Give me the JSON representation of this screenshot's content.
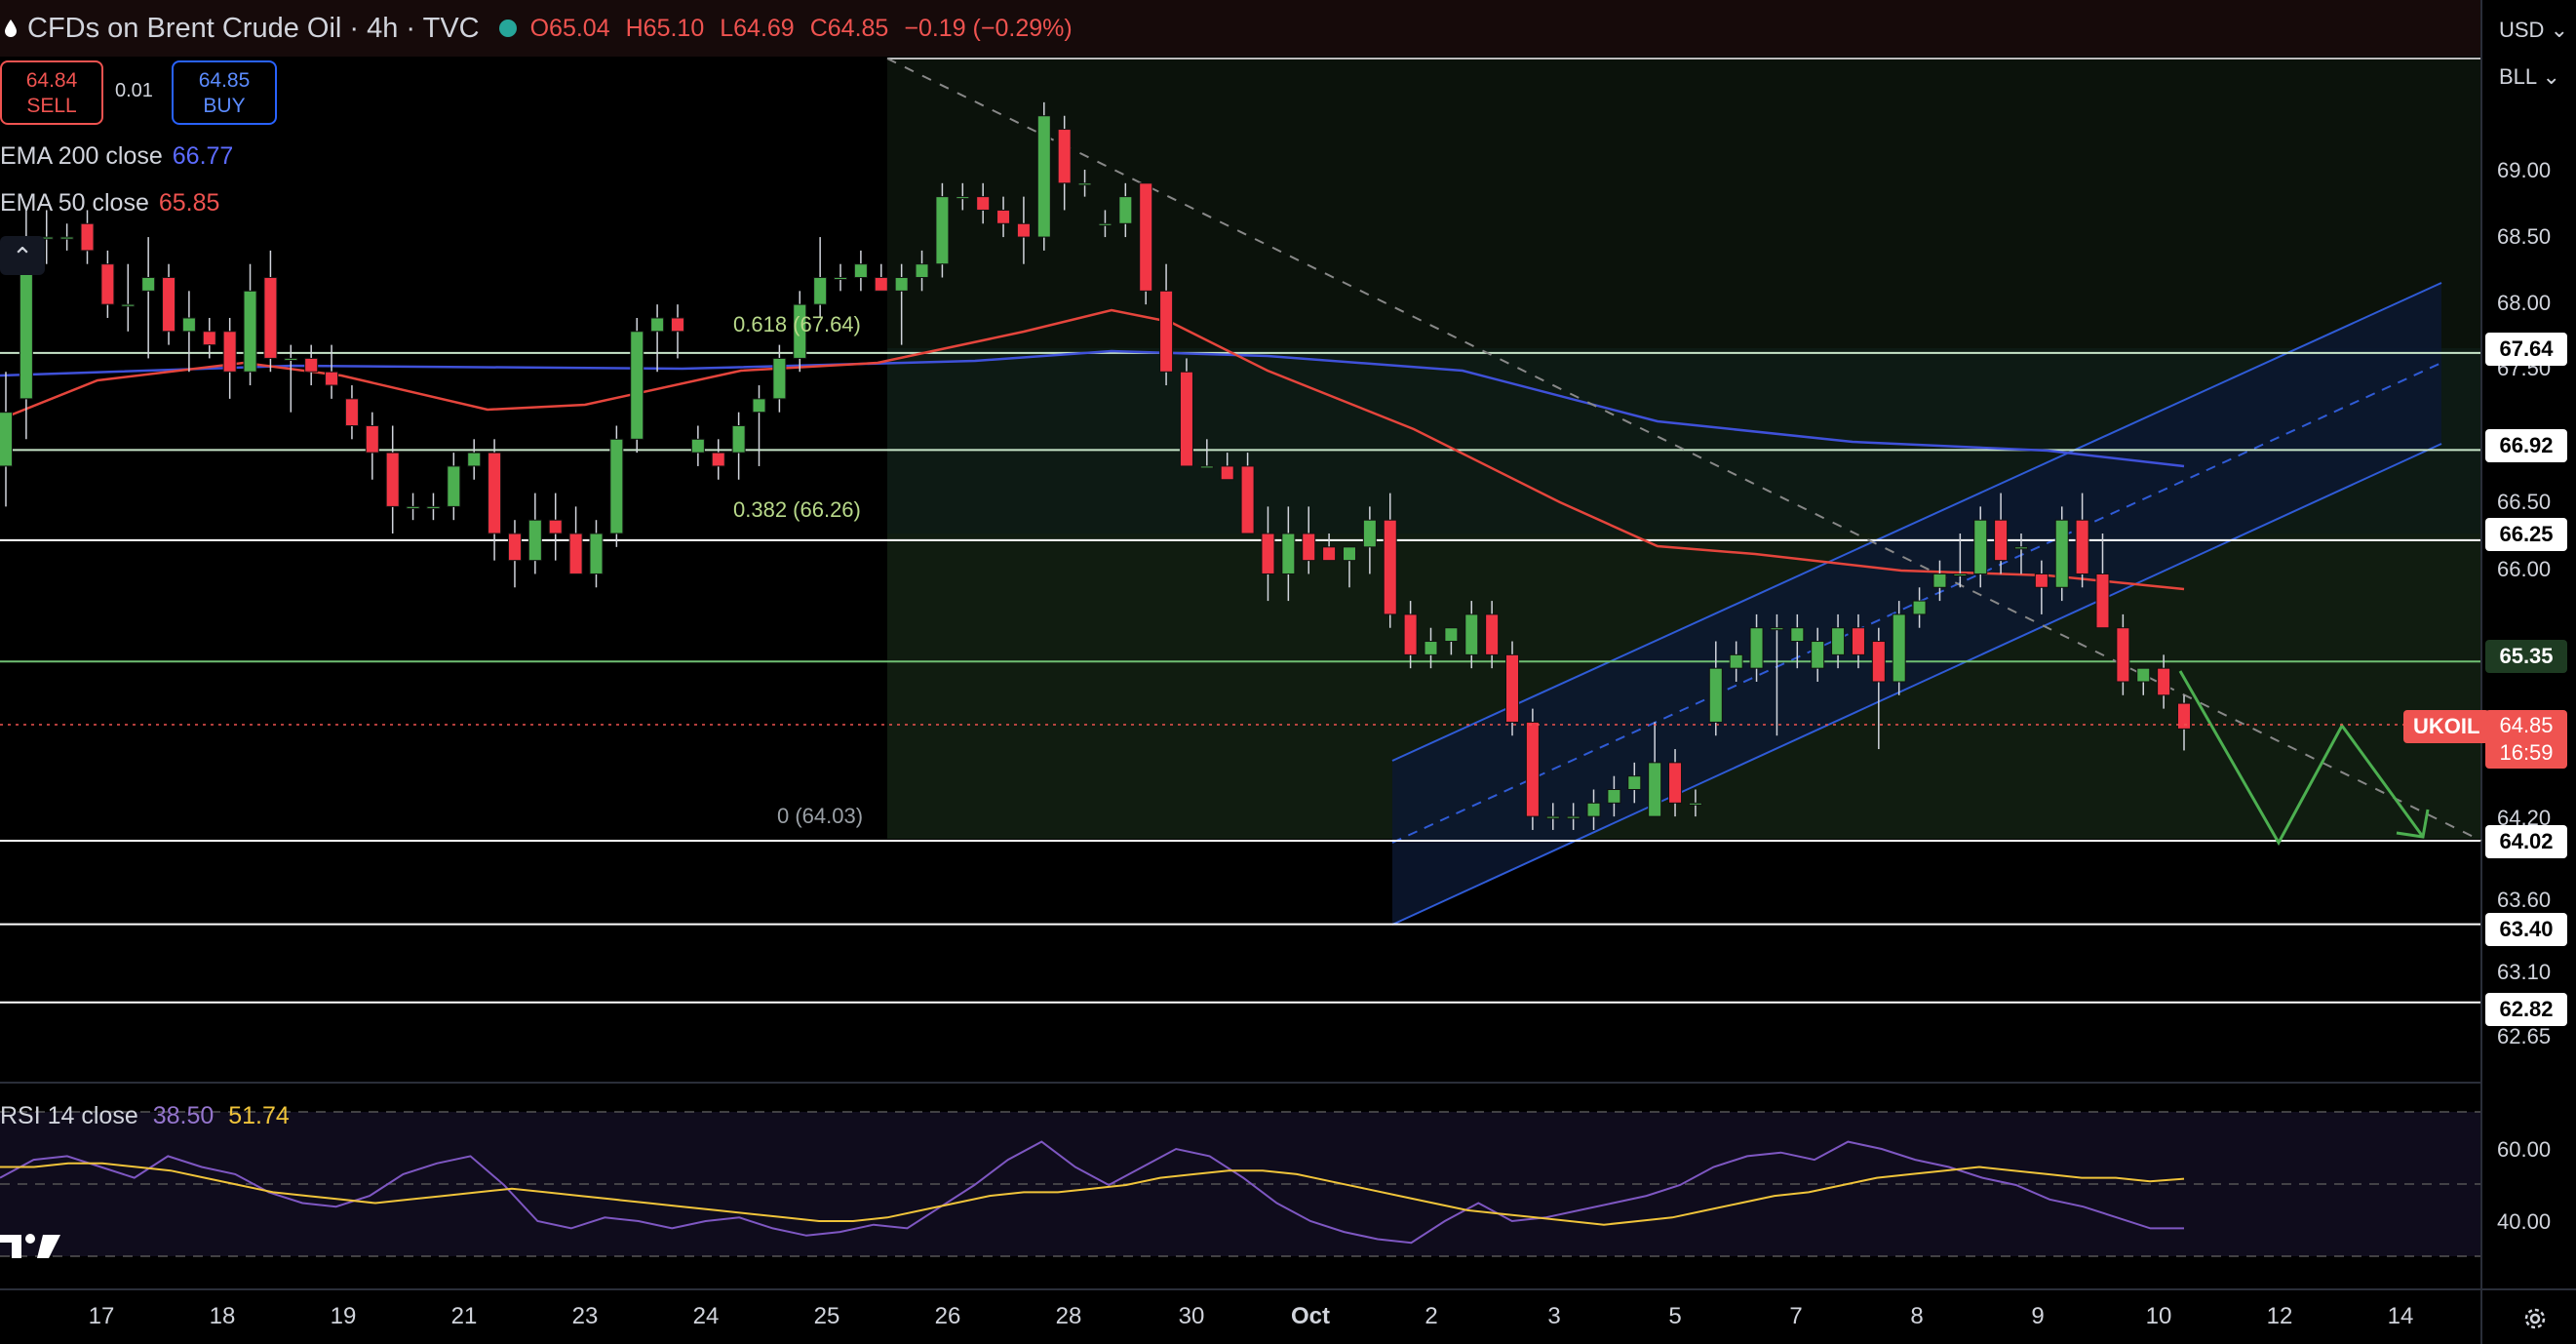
{
  "header": {
    "title": "CFDs on Brent Crude Oil · 4h · TVC",
    "open": "O65.04",
    "high": "H65.10",
    "low": "L64.69",
    "close": "C64.85",
    "change": "−0.19 (−0.29%)"
  },
  "trade": {
    "sell_price": "64.84",
    "sell_label": "SELL",
    "spread": "0.01",
    "buy_price": "64.85",
    "buy_label": "BUY"
  },
  "indicators": {
    "ema200_label": "EMA 200 close",
    "ema200_value": "66.77",
    "ema50_label": "EMA 50 close",
    "ema50_value": "65.85"
  },
  "right_panel": {
    "currency": "USD",
    "unit": "BLL",
    "symbol": "UKOIL",
    "last_price": "64.85",
    "countdown": "16:59"
  },
  "price_axis": {
    "labels": [
      "69.00",
      "68.50",
      "68.00",
      "67.50",
      "66.50",
      "66.00",
      "64.20",
      "63.60",
      "63.10",
      "62.65"
    ],
    "level_tags": [
      "67.64",
      "66.92",
      "66.25",
      "64.02",
      "63.40",
      "62.82"
    ],
    "green_tag": "65.35"
  },
  "fib": {
    "f0618": "0.618 (67.64)",
    "f0382": "0.382 (66.26)",
    "f0": "0 (64.03)"
  },
  "rsi": {
    "label": "RSI 14 close",
    "value": "38.50",
    "ma_value": "51.74",
    "axis": [
      "60.00",
      "40.00"
    ]
  },
  "time_axis": [
    "17",
    "18",
    "19",
    "21",
    "23",
    "24",
    "25",
    "26",
    "28",
    "30",
    "Oct",
    "2",
    "3",
    "5",
    "7",
    "8",
    "9",
    "10",
    "12",
    "14"
  ],
  "colors": {
    "bull": "#4caf50",
    "bear": "#f23645",
    "ema200": "#3f51d9",
    "ema50": "#e5453c",
    "rsi": "#7e57c2",
    "rsi_ma": "#f0c43a"
  },
  "chart_data": {
    "type": "candlestick",
    "symbol": "UKOIL",
    "timeframe": "4h",
    "ylim": [
      62.5,
      69.5
    ],
    "ohlc_bars": [
      {
        "o": 66.8,
        "h": 67.5,
        "l": 66.5,
        "c": 67.2
      },
      {
        "o": 67.3,
        "h": 68.7,
        "l": 67.0,
        "c": 68.5
      },
      {
        "o": 68.5,
        "h": 68.7,
        "l": 68.3,
        "c": 68.5
      },
      {
        "o": 68.5,
        "h": 68.6,
        "l": 68.4,
        "c": 68.5
      },
      {
        "o": 68.6,
        "h": 68.7,
        "l": 68.3,
        "c": 68.4
      },
      {
        "o": 68.3,
        "h": 68.4,
        "l": 67.9,
        "c": 68.0
      },
      {
        "o": 68.0,
        "h": 68.3,
        "l": 67.8,
        "c": 68.0
      },
      {
        "o": 68.1,
        "h": 68.5,
        "l": 67.6,
        "c": 68.2
      },
      {
        "o": 68.2,
        "h": 68.3,
        "l": 67.7,
        "c": 67.8
      },
      {
        "o": 67.8,
        "h": 68.1,
        "l": 67.5,
        "c": 67.9
      },
      {
        "o": 67.8,
        "h": 67.9,
        "l": 67.6,
        "c": 67.7
      },
      {
        "o": 67.8,
        "h": 67.9,
        "l": 67.3,
        "c": 67.5
      },
      {
        "o": 67.5,
        "h": 68.3,
        "l": 67.4,
        "c": 68.1
      },
      {
        "o": 68.2,
        "h": 68.4,
        "l": 67.5,
        "c": 67.6
      },
      {
        "o": 67.6,
        "h": 67.7,
        "l": 67.2,
        "c": 67.6
      },
      {
        "o": 67.6,
        "h": 67.7,
        "l": 67.4,
        "c": 67.5
      },
      {
        "o": 67.5,
        "h": 67.7,
        "l": 67.3,
        "c": 67.4
      },
      {
        "o": 67.3,
        "h": 67.4,
        "l": 67.0,
        "c": 67.1
      },
      {
        "o": 67.1,
        "h": 67.2,
        "l": 66.7,
        "c": 66.9
      },
      {
        "o": 66.9,
        "h": 67.1,
        "l": 66.3,
        "c": 66.5
      },
      {
        "o": 66.5,
        "h": 66.6,
        "l": 66.4,
        "c": 66.5
      },
      {
        "o": 66.5,
        "h": 66.6,
        "l": 66.4,
        "c": 66.5
      },
      {
        "o": 66.5,
        "h": 66.9,
        "l": 66.4,
        "c": 66.8
      },
      {
        "o": 66.8,
        "h": 67.0,
        "l": 66.7,
        "c": 66.9
      },
      {
        "o": 66.9,
        "h": 67.0,
        "l": 66.1,
        "c": 66.3
      },
      {
        "o": 66.3,
        "h": 66.4,
        "l": 65.9,
        "c": 66.1
      },
      {
        "o": 66.1,
        "h": 66.6,
        "l": 66.0,
        "c": 66.4
      },
      {
        "o": 66.4,
        "h": 66.6,
        "l": 66.1,
        "c": 66.3
      },
      {
        "o": 66.3,
        "h": 66.5,
        "l": 66.1,
        "c": 66.0
      },
      {
        "o": 66.0,
        "h": 66.4,
        "l": 65.9,
        "c": 66.3
      },
      {
        "o": 66.3,
        "h": 67.1,
        "l": 66.2,
        "c": 67.0
      },
      {
        "o": 67.0,
        "h": 67.9,
        "l": 66.9,
        "c": 67.8
      },
      {
        "o": 67.8,
        "h": 68.0,
        "l": 67.5,
        "c": 67.9
      },
      {
        "o": 67.9,
        "h": 68.0,
        "l": 67.6,
        "c": 67.8
      },
      {
        "o": 66.9,
        "h": 67.1,
        "l": 66.8,
        "c": 67.0
      },
      {
        "o": 66.9,
        "h": 67.0,
        "l": 66.7,
        "c": 66.8
      },
      {
        "o": 66.9,
        "h": 67.2,
        "l": 66.7,
        "c": 67.1
      },
      {
        "o": 67.2,
        "h": 67.4,
        "l": 66.8,
        "c": 67.3
      },
      {
        "o": 67.3,
        "h": 67.7,
        "l": 67.2,
        "c": 67.6
      },
      {
        "o": 67.6,
        "h": 68.1,
        "l": 67.5,
        "c": 68.0
      },
      {
        "o": 68.0,
        "h": 68.5,
        "l": 67.9,
        "c": 68.2
      },
      {
        "o": 68.2,
        "h": 68.3,
        "l": 68.1,
        "c": 68.2
      },
      {
        "o": 68.2,
        "h": 68.4,
        "l": 68.1,
        "c": 68.3
      },
      {
        "o": 68.2,
        "h": 68.3,
        "l": 68.1,
        "c": 68.1
      },
      {
        "o": 68.1,
        "h": 68.3,
        "l": 67.7,
        "c": 68.2
      },
      {
        "o": 68.2,
        "h": 68.4,
        "l": 68.1,
        "c": 68.3
      },
      {
        "o": 68.3,
        "h": 68.9,
        "l": 68.2,
        "c": 68.8
      },
      {
        "o": 68.8,
        "h": 68.9,
        "l": 68.7,
        "c": 68.8
      },
      {
        "o": 68.8,
        "h": 68.9,
        "l": 68.6,
        "c": 68.7
      },
      {
        "o": 68.7,
        "h": 68.8,
        "l": 68.5,
        "c": 68.6
      },
      {
        "o": 68.6,
        "h": 68.8,
        "l": 68.3,
        "c": 68.5
      },
      {
        "o": 68.5,
        "h": 69.5,
        "l": 68.4,
        "c": 69.4
      },
      {
        "o": 69.3,
        "h": 69.4,
        "l": 68.7,
        "c": 68.9
      },
      {
        "o": 68.9,
        "h": 69.0,
        "l": 68.8,
        "c": 68.9
      },
      {
        "o": 68.6,
        "h": 68.7,
        "l": 68.5,
        "c": 68.6
      },
      {
        "o": 68.6,
        "h": 68.9,
        "l": 68.5,
        "c": 68.8
      },
      {
        "o": 68.9,
        "h": 68.9,
        "l": 68.0,
        "c": 68.1
      },
      {
        "o": 68.1,
        "h": 68.3,
        "l": 67.4,
        "c": 67.5
      },
      {
        "o": 67.5,
        "h": 67.6,
        "l": 66.8,
        "c": 66.8
      },
      {
        "o": 66.8,
        "h": 67.0,
        "l": 66.8,
        "c": 66.8
      },
      {
        "o": 66.8,
        "h": 66.9,
        "l": 66.7,
        "c": 66.7
      },
      {
        "o": 66.8,
        "h": 66.9,
        "l": 66.3,
        "c": 66.3
      },
      {
        "o": 66.3,
        "h": 66.5,
        "l": 65.8,
        "c": 66.0
      },
      {
        "o": 66.0,
        "h": 66.5,
        "l": 65.8,
        "c": 66.3
      },
      {
        "o": 66.3,
        "h": 66.5,
        "l": 66.0,
        "c": 66.1
      },
      {
        "o": 66.2,
        "h": 66.3,
        "l": 66.1,
        "c": 66.1
      },
      {
        "o": 66.1,
        "h": 66.2,
        "l": 65.9,
        "c": 66.2
      },
      {
        "o": 66.2,
        "h": 66.5,
        "l": 66.0,
        "c": 66.4
      },
      {
        "o": 66.4,
        "h": 66.6,
        "l": 65.6,
        "c": 65.7
      },
      {
        "o": 65.7,
        "h": 65.8,
        "l": 65.3,
        "c": 65.4
      },
      {
        "o": 65.4,
        "h": 65.6,
        "l": 65.3,
        "c": 65.5
      },
      {
        "o": 65.5,
        "h": 65.6,
        "l": 65.4,
        "c": 65.6
      },
      {
        "o": 65.4,
        "h": 65.8,
        "l": 65.3,
        "c": 65.7
      },
      {
        "o": 65.7,
        "h": 65.8,
        "l": 65.3,
        "c": 65.4
      },
      {
        "o": 65.4,
        "h": 65.5,
        "l": 64.8,
        "c": 64.9
      },
      {
        "o": 64.9,
        "h": 65.0,
        "l": 64.1,
        "c": 64.2
      },
      {
        "o": 64.2,
        "h": 64.3,
        "l": 64.1,
        "c": 64.2
      },
      {
        "o": 64.2,
        "h": 64.3,
        "l": 64.1,
        "c": 64.2
      },
      {
        "o": 64.2,
        "h": 64.4,
        "l": 64.1,
        "c": 64.3
      },
      {
        "o": 64.3,
        "h": 64.5,
        "l": 64.2,
        "c": 64.4
      },
      {
        "o": 64.4,
        "h": 64.6,
        "l": 64.3,
        "c": 64.5
      },
      {
        "o": 64.2,
        "h": 64.9,
        "l": 64.2,
        "c": 64.6
      },
      {
        "o": 64.6,
        "h": 64.7,
        "l": 64.2,
        "c": 64.3
      },
      {
        "o": 64.3,
        "h": 64.4,
        "l": 64.2,
        "c": 64.3
      },
      {
        "o": 64.9,
        "h": 65.5,
        "l": 64.8,
        "c": 65.3
      },
      {
        "o": 65.3,
        "h": 65.5,
        "l": 65.2,
        "c": 65.4
      },
      {
        "o": 65.3,
        "h": 65.7,
        "l": 65.2,
        "c": 65.6
      },
      {
        "o": 65.6,
        "h": 65.7,
        "l": 64.8,
        "c": 65.6
      },
      {
        "o": 65.5,
        "h": 65.7,
        "l": 65.3,
        "c": 65.6
      },
      {
        "o": 65.3,
        "h": 65.6,
        "l": 65.2,
        "c": 65.5
      },
      {
        "o": 65.4,
        "h": 65.7,
        "l": 65.3,
        "c": 65.6
      },
      {
        "o": 65.6,
        "h": 65.7,
        "l": 65.3,
        "c": 65.4
      },
      {
        "o": 65.5,
        "h": 65.6,
        "l": 64.7,
        "c": 65.2
      },
      {
        "o": 65.2,
        "h": 65.8,
        "l": 65.1,
        "c": 65.7
      },
      {
        "o": 65.7,
        "h": 65.9,
        "l": 65.6,
        "c": 65.8
      },
      {
        "o": 65.9,
        "h": 66.1,
        "l": 65.8,
        "c": 66.0
      },
      {
        "o": 66.0,
        "h": 66.3,
        "l": 65.9,
        "c": 66.0
      },
      {
        "o": 66.0,
        "h": 66.5,
        "l": 65.9,
        "c": 66.4
      },
      {
        "o": 66.4,
        "h": 66.6,
        "l": 66.0,
        "c": 66.1
      },
      {
        "o": 66.2,
        "h": 66.3,
        "l": 66.0,
        "c": 66.2
      },
      {
        "o": 66.0,
        "h": 66.1,
        "l": 65.7,
        "c": 65.9
      },
      {
        "o": 65.9,
        "h": 66.5,
        "l": 65.8,
        "c": 66.4
      },
      {
        "o": 66.4,
        "h": 66.6,
        "l": 65.9,
        "c": 66.0
      },
      {
        "o": 66.0,
        "h": 66.3,
        "l": 65.8,
        "c": 65.6
      },
      {
        "o": 65.6,
        "h": 65.7,
        "l": 65.1,
        "c": 65.2
      },
      {
        "o": 65.2,
        "h": 65.3,
        "l": 65.1,
        "c": 65.3
      },
      {
        "o": 65.3,
        "h": 65.4,
        "l": 65.0,
        "c": 65.1
      },
      {
        "o": 65.04,
        "h": 65.1,
        "l": 64.69,
        "c": 64.85
      }
    ],
    "ema200": [
      66.77,
      66.8,
      66.85,
      66.9,
      66.95,
      67.0,
      67.03,
      66.9,
      66.85,
      66.77
    ],
    "ema50": [
      67.4,
      67.2,
      67.2,
      67.4,
      67.7,
      67.4,
      66.8,
      66.1,
      65.9,
      65.85
    ],
    "horizontal_levels": [
      67.64,
      66.92,
      66.25,
      65.35,
      64.02,
      63.4,
      62.82
    ],
    "rsi": [
      52,
      57,
      58,
      55,
      52,
      58,
      55,
      53,
      48,
      45,
      44,
      47,
      53,
      56,
      58,
      50,
      40,
      38,
      41,
      40,
      38,
      40,
      41,
      38,
      36,
      37,
      39,
      38,
      44,
      50,
      57,
      62,
      55,
      50,
      55,
      60,
      58,
      52,
      45,
      40,
      37,
      35,
      34,
      40,
      45,
      40,
      41,
      43,
      45,
      47,
      50,
      55,
      58,
      59,
      57,
      62,
      60,
      57,
      55,
      52,
      50,
      46,
      44,
      41,
      38,
      38
    ],
    "rsi_ma": [
      55,
      55,
      56,
      56,
      55,
      54,
      52,
      50,
      48,
      47,
      46,
      45,
      46,
      47,
      48,
      49,
      48,
      47,
      46,
      45,
      44,
      43,
      42,
      41,
      40,
      40,
      41,
      43,
      45,
      47,
      48,
      48,
      49,
      50,
      52,
      53,
      54,
      54,
      53,
      51,
      49,
      47,
      45,
      43,
      42,
      41,
      40,
      39,
      40,
      41,
      43,
      45,
      47,
      48,
      50,
      52,
      53,
      54,
      55,
      54,
      53,
      52,
      52,
      51,
      51.74
    ]
  }
}
